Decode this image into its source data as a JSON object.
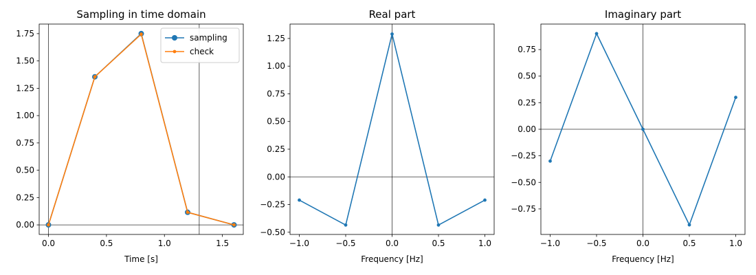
{
  "chart_data": [
    {
      "type": "line",
      "title": "Sampling in time domain",
      "xlabel": "Time [s]",
      "ylabel": "",
      "xlim": [
        -0.08,
        1.68
      ],
      "ylim": [
        -0.0875,
        1.8375
      ],
      "xticks": [
        0.0,
        0.5,
        1.0,
        1.5
      ],
      "xtick_labels": [
        "0.0",
        "0.5",
        "1.0",
        "1.5"
      ],
      "yticks": [
        0.0,
        0.25,
        0.5,
        0.75,
        1.0,
        1.25,
        1.5,
        1.75
      ],
      "ytick_labels": [
        "0.00",
        "0.25",
        "0.50",
        "0.75",
        "1.00",
        "1.25",
        "1.50",
        "1.75"
      ],
      "reference_lines": {
        "horizontal": [
          0
        ],
        "vertical": [
          0,
          1.3
        ]
      },
      "legend_position": "top-right",
      "series": [
        {
          "name": "sampling",
          "color": "#1f77b4",
          "marker": "large-circle",
          "x": [
            0.0,
            0.4,
            0.8,
            1.2,
            1.6
          ],
          "y": [
            0.0,
            1.355,
            1.75,
            0.115,
            0.0
          ]
        },
        {
          "name": "check",
          "color": "#ff7f0e",
          "marker": "small-circle",
          "x": [
            0.0,
            0.4,
            0.8,
            1.2,
            1.6
          ],
          "y": [
            0.0,
            1.355,
            1.745,
            0.115,
            0.0
          ]
        }
      ]
    },
    {
      "type": "line",
      "title": "Real part",
      "xlabel": "Frequency [Hz]",
      "ylabel": "",
      "xlim": [
        -1.1,
        1.1
      ],
      "ylim": [
        -0.52,
        1.38
      ],
      "xticks": [
        -1.0,
        -0.5,
        0.0,
        0.5,
        1.0
      ],
      "xtick_labels": [
        "−1.0",
        "−0.5",
        "0.0",
        "0.5",
        "1.0"
      ],
      "yticks": [
        -0.5,
        -0.25,
        0.0,
        0.25,
        0.5,
        0.75,
        1.0,
        1.25
      ],
      "ytick_labels": [
        "−0.50",
        "−0.25",
        "0.00",
        "0.25",
        "0.50",
        "0.75",
        "1.00",
        "1.25"
      ],
      "reference_lines": {
        "horizontal": [
          0
        ],
        "vertical": [
          0
        ]
      },
      "series": [
        {
          "color": "#1f77b4",
          "marker": "small-circle",
          "x": [
            -1.0,
            -0.5,
            0.0,
            0.5,
            1.0
          ],
          "y": [
            -0.21,
            -0.435,
            1.29,
            -0.435,
            -0.21
          ]
        }
      ]
    },
    {
      "type": "line",
      "title": "Imaginary part",
      "xlabel": "Frequency [Hz]",
      "ylabel": "",
      "xlim": [
        -1.1,
        1.1
      ],
      "ylim": [
        -0.99,
        0.99
      ],
      "xticks": [
        -1.0,
        -0.5,
        0.0,
        0.5,
        1.0
      ],
      "xtick_labels": [
        "−1.0",
        "−0.5",
        "0.0",
        "0.5",
        "1.0"
      ],
      "yticks": [
        -0.75,
        -0.5,
        -0.25,
        0.0,
        0.25,
        0.5,
        0.75
      ],
      "ytick_labels": [
        "−0.75",
        "−0.50",
        "−0.25",
        "0.00",
        "0.25",
        "0.50",
        "0.75"
      ],
      "reference_lines": {
        "horizontal": [
          0
        ],
        "vertical": [
          0
        ]
      },
      "series": [
        {
          "color": "#1f77b4",
          "marker": "small-circle",
          "x": [
            -1.0,
            -0.5,
            0.0,
            0.5,
            1.0
          ],
          "y": [
            -0.3,
            0.9,
            0.0,
            -0.9,
            0.3
          ]
        }
      ]
    }
  ]
}
